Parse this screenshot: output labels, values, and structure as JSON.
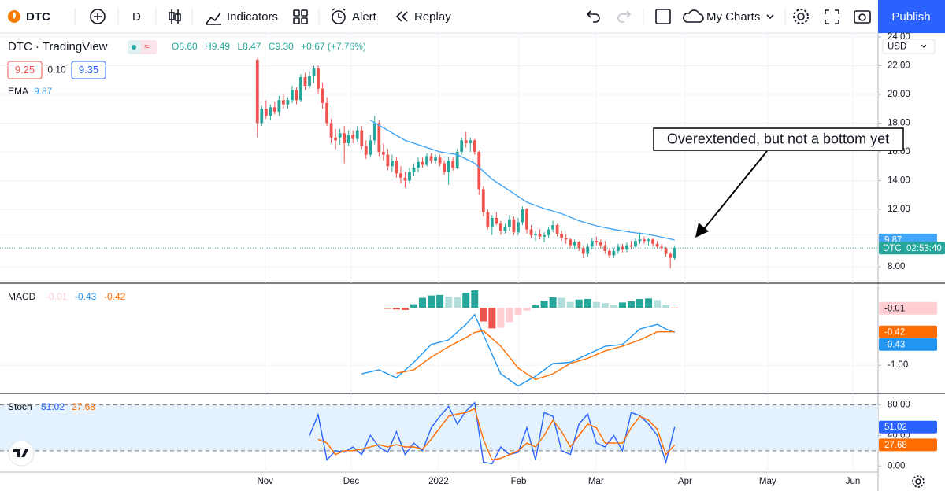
{
  "toolbar": {
    "symbol": "DTC",
    "interval": "D",
    "indicators": "Indicators",
    "alert": "Alert",
    "replay": "Replay",
    "layouts": "My Charts",
    "publish": "Publish"
  },
  "header": {
    "title": "DTC · TradingView",
    "open": "O8.60",
    "high": "H9.49",
    "low": "L8.47",
    "close": "C9.30",
    "change": "+0.67 (+7.76%)",
    "bid": "9.25",
    "spread": "0.10",
    "ask": "9.35"
  },
  "currency": "USD",
  "annotation": "Overextended, but not a bottom yet",
  "chart_data": [
    {
      "type": "candlestick",
      "symbol": "DTC",
      "countdown": "02:53:40",
      "up_color": "#26a69a",
      "down_color": "#ef5350",
      "grid": true,
      "xlim": [
        -59.2,
        142.8
      ],
      "xticks": [
        {
          "value": 1.8,
          "label": "Nov"
        },
        {
          "value": 21.6,
          "label": "Dec"
        },
        {
          "value": 41.7,
          "label": "2022"
        },
        {
          "value": 60.1,
          "label": "Feb"
        },
        {
          "value": 77.9,
          "label": "Mar"
        },
        {
          "value": 98.4,
          "label": "Apr"
        },
        {
          "value": 117.4,
          "label": "May"
        },
        {
          "value": 137,
          "label": "Jun"
        }
      ],
      "ylim": [
        6.85,
        24.27
      ],
      "yticks": [
        {
          "value": 24,
          "label": "24.00"
        },
        {
          "value": 22,
          "label": "22.00"
        },
        {
          "value": 20,
          "label": "20.00"
        },
        {
          "value": 18,
          "label": "18.00"
        },
        {
          "value": 16,
          "label": "16.00"
        },
        {
          "value": 14,
          "label": "14.00"
        },
        {
          "value": 12,
          "label": "12.00"
        },
        {
          "value": 10,
          "label": "10.00"
        },
        {
          "value": 8,
          "label": "8.00"
        }
      ],
      "ohlc": [
        [
          22.4,
          22.5,
          17.0,
          18.0
        ],
        [
          18.0,
          19.2,
          17.8,
          19.0
        ],
        [
          19.0,
          19.6,
          18.3,
          18.5
        ],
        [
          18.5,
          19.3,
          18.2,
          19.1
        ],
        [
          19.1,
          19.5,
          18.6,
          18.8
        ],
        [
          18.8,
          19.9,
          18.5,
          19.6
        ],
        [
          19.6,
          20.0,
          19.0,
          19.3
        ],
        [
          19.3,
          19.8,
          19.0,
          19.6
        ],
        [
          19.6,
          20.6,
          19.4,
          20.3
        ],
        [
          20.3,
          20.5,
          19.3,
          19.6
        ],
        [
          19.6,
          21.4,
          19.5,
          21.2
        ],
        [
          21.2,
          21.5,
          20.3,
          20.6
        ],
        [
          20.6,
          21.6,
          20.4,
          21.3
        ],
        [
          21.3,
          22.0,
          20.8,
          21.8
        ],
        [
          21.8,
          22.0,
          20.0,
          20.4
        ],
        [
          20.4,
          20.8,
          19.0,
          19.4
        ],
        [
          19.4,
          19.8,
          17.8,
          18.0
        ],
        [
          18.0,
          18.3,
          16.6,
          17.0
        ],
        [
          17.0,
          17.6,
          16.2,
          16.8
        ],
        [
          17.0,
          17.6,
          16.5,
          17.3
        ],
        [
          17.3,
          17.8,
          15.2,
          16.6
        ],
        [
          16.6,
          17.5,
          16.4,
          17.2
        ],
        [
          17.2,
          17.5,
          16.6,
          16.9
        ],
        [
          16.9,
          17.8,
          16.7,
          17.5
        ],
        [
          17.5,
          17.8,
          16.2,
          16.4
        ],
        [
          16.4,
          16.8,
          15.5,
          15.8
        ],
        [
          15.8,
          17.2,
          15.6,
          16.8
        ],
        [
          16.8,
          18.5,
          16.5,
          18.0
        ],
        [
          18.0,
          18.2,
          15.7,
          16.0
        ],
        [
          16.0,
          16.6,
          15.4,
          15.8
        ],
        [
          15.8,
          16.2,
          14.7,
          15.0
        ],
        [
          15.0,
          15.8,
          14.6,
          15.4
        ],
        [
          15.4,
          15.6,
          14.2,
          14.5
        ],
        [
          14.5,
          15.0,
          13.8,
          14.2
        ],
        [
          14.2,
          14.6,
          13.5,
          14.0
        ],
        [
          14.0,
          14.9,
          13.8,
          14.6
        ],
        [
          14.6,
          15.2,
          14.3,
          14.9
        ],
        [
          14.9,
          15.6,
          14.6,
          15.3
        ],
        [
          15.3,
          15.6,
          14.9,
          15.1
        ],
        [
          15.1,
          15.9,
          15.0,
          15.7
        ],
        [
          15.7,
          15.9,
          15.2,
          15.4
        ],
        [
          15.4,
          15.8,
          15.2,
          15.6
        ],
        [
          15.6,
          15.8,
          15.0,
          15.2
        ],
        [
          15.2,
          15.4,
          14.4,
          14.6
        ],
        [
          14.6,
          15.6,
          13.7,
          15.4
        ],
        [
          15.4,
          15.6,
          14.7,
          14.9
        ],
        [
          14.9,
          16.2,
          14.8,
          16.0
        ],
        [
          16.0,
          17.0,
          15.8,
          16.8
        ],
        [
          16.8,
          17.4,
          16.3,
          16.6
        ],
        [
          16.6,
          17.0,
          16.0,
          16.8
        ],
        [
          16.8,
          16.9,
          15.8,
          16.0
        ],
        [
          16.0,
          16.1,
          13.0,
          13.4
        ],
        [
          13.4,
          13.6,
          11.5,
          11.8
        ],
        [
          11.8,
          12.0,
          10.6,
          10.8
        ],
        [
          10.8,
          11.6,
          10.2,
          11.4
        ],
        [
          11.4,
          11.8,
          10.9,
          11.0
        ],
        [
          11.0,
          11.2,
          10.2,
          10.5
        ],
        [
          10.5,
          11.0,
          10.3,
          10.8
        ],
        [
          10.8,
          11.6,
          10.5,
          11.3
        ],
        [
          11.3,
          11.5,
          10.2,
          10.4
        ],
        [
          10.4,
          11.4,
          10.2,
          11.1
        ],
        [
          11.1,
          12.2,
          10.9,
          12.0
        ],
        [
          12.0,
          12.1,
          10.3,
          10.6
        ],
        [
          10.6,
          10.9,
          10.0,
          10.2
        ],
        [
          10.2,
          10.5,
          9.8,
          10.3
        ],
        [
          10.3,
          10.6,
          9.9,
          10.1
        ],
        [
          10.1,
          10.4,
          9.7,
          10.2
        ],
        [
          10.2,
          10.8,
          10.0,
          10.6
        ],
        [
          10.6,
          11.2,
          10.4,
          10.9
        ],
        [
          10.9,
          11.0,
          10.1,
          10.3
        ],
        [
          10.3,
          10.5,
          9.8,
          10.0
        ],
        [
          10.0,
          10.3,
          9.6,
          9.9
        ],
        [
          9.9,
          10.0,
          9.3,
          9.5
        ],
        [
          9.5,
          9.9,
          9.2,
          9.7
        ],
        [
          9.7,
          9.8,
          9.1,
          9.3
        ],
        [
          9.3,
          9.5,
          8.6,
          8.9
        ],
        [
          8.9,
          9.6,
          8.7,
          9.4
        ],
        [
          9.4,
          10.0,
          9.2,
          9.8
        ],
        [
          9.8,
          10.1,
          9.5,
          9.7
        ],
        [
          9.7,
          9.9,
          9.3,
          9.5
        ],
        [
          9.5,
          9.8,
          8.9,
          9.1
        ],
        [
          9.1,
          9.3,
          8.6,
          8.8
        ],
        [
          8.8,
          9.3,
          8.6,
          9.1
        ],
        [
          9.1,
          9.6,
          8.9,
          9.4
        ],
        [
          9.4,
          9.6,
          9.0,
          9.2
        ],
        [
          9.2,
          9.7,
          9.0,
          9.5
        ],
        [
          9.5,
          9.8,
          9.2,
          9.4
        ],
        [
          9.4,
          10.0,
          9.3,
          9.8
        ],
        [
          9.8,
          10.4,
          9.6,
          9.9
        ],
        [
          9.9,
          10.1,
          9.6,
          9.8
        ],
        [
          9.8,
          10.0,
          9.5,
          9.9
        ],
        [
          9.9,
          10.0,
          9.4,
          9.6
        ],
        [
          9.6,
          9.8,
          9.3,
          9.4
        ],
        [
          9.4,
          9.6,
          9.1,
          9.3
        ],
        [
          9.3,
          9.4,
          8.7,
          8.9
        ],
        [
          8.9,
          9.0,
          7.9,
          8.63
        ],
        [
          8.6,
          9.49,
          8.47,
          9.3
        ]
      ],
      "series": [
        {
          "name": "EMA",
          "color": "#42a5f5",
          "x": [
            26,
            30,
            34,
            38,
            42,
            46,
            50,
            54,
            58,
            62,
            66,
            70,
            74,
            78,
            82,
            86,
            90,
            94,
            96
          ],
          "values": [
            18.2,
            17.5,
            16.8,
            16.4,
            16.0,
            15.8,
            15.2,
            14.1,
            13.3,
            12.5,
            12.05,
            11.7,
            11.2,
            10.85,
            10.6,
            10.4,
            10.25,
            10.0,
            9.87
          ]
        }
      ]
    },
    {
      "type": "macd",
      "title": "MACD",
      "ylim": [
        -1.49,
        0.41
      ],
      "yticks": [
        {
          "value": -1,
          "label": "-1.00"
        }
      ],
      "histogram": {
        "colors": [
          "#26a69a",
          "#b2dfdb",
          "#ffcdd2",
          "#ef5350"
        ],
        "x": [
          30,
          32,
          34,
          36,
          38,
          40,
          42,
          44,
          46,
          48,
          50,
          52,
          54,
          56,
          58,
          60,
          62,
          64,
          66,
          68,
          70,
          72,
          74,
          76,
          78,
          80,
          82,
          84,
          86,
          88,
          90,
          92,
          94,
          96
        ],
        "values": [
          -0.02,
          -0.03,
          -0.04,
          0.06,
          0.17,
          0.21,
          0.22,
          0.19,
          0.18,
          0.26,
          0.3,
          -0.24,
          -0.36,
          -0.35,
          -0.25,
          -0.12,
          -0.05,
          0.04,
          0.12,
          0.18,
          0.17,
          0.1,
          0.14,
          0.15,
          0.1,
          0.08,
          0.05,
          0.09,
          0.11,
          0.15,
          0.16,
          0.13,
          0.05,
          -0.01
        ]
      },
      "series": [
        {
          "color": "#2196f3",
          "x": [
            24,
            28,
            32,
            36,
            40,
            44,
            48,
            50,
            52,
            56,
            60,
            64,
            68,
            72,
            76,
            80,
            84,
            88,
            92,
            94,
            96
          ],
          "values": [
            -1.15,
            -1.08,
            -1.22,
            -0.95,
            -0.64,
            -0.56,
            -0.29,
            -0.12,
            -0.47,
            -1.15,
            -1.36,
            -1.19,
            -0.97,
            -0.95,
            -0.81,
            -0.67,
            -0.64,
            -0.37,
            -0.29,
            -0.37,
            -0.43
          ]
        },
        {
          "color": "#ff6d00",
          "x": [
            32,
            36,
            40,
            44,
            48,
            50,
            52,
            56,
            60,
            64,
            68,
            72,
            76,
            80,
            84,
            88,
            92,
            96
          ],
          "values": [
            -1.14,
            -1.08,
            -0.86,
            -0.68,
            -0.52,
            -0.43,
            -0.4,
            -0.67,
            -1.05,
            -1.25,
            -1.15,
            -0.97,
            -0.88,
            -0.75,
            -0.67,
            -0.56,
            -0.42,
            -0.42
          ]
        }
      ]
    },
    {
      "type": "stochastic",
      "title": "Stoch",
      "ylim": [
        -8,
        94
      ],
      "band_color": "#e3f2fd",
      "levels": [
        80,
        20
      ],
      "yticks": [
        {
          "value": 80,
          "label": "80.00"
        },
        {
          "value": 40,
          "label": "40.00"
        },
        {
          "value": 0,
          "label": "0.00"
        }
      ],
      "series": [
        {
          "color": "#2962ff",
          "x": [
            12,
            14,
            16,
            18,
            20,
            22,
            24,
            26,
            28,
            30,
            32,
            34,
            36,
            38,
            40,
            42,
            44,
            46,
            48,
            50,
            52,
            54,
            56,
            58,
            60,
            62,
            64,
            66,
            68,
            70,
            72,
            74,
            76,
            78,
            80,
            82,
            84,
            86,
            88,
            90,
            92,
            94,
            96
          ],
          "values": [
            40,
            67,
            8,
            20,
            18,
            25,
            15,
            40,
            25,
            18,
            45,
            15,
            30,
            20,
            50,
            65,
            78,
            55,
            72,
            83,
            5,
            3,
            25,
            15,
            18,
            50,
            8,
            70,
            65,
            20,
            15,
            55,
            68,
            30,
            25,
            40,
            20,
            70,
            66,
            55,
            40,
            5,
            51.02
          ]
        },
        {
          "color": "#ff6d00",
          "x": [
            14,
            16,
            18,
            20,
            22,
            24,
            26,
            28,
            30,
            32,
            34,
            36,
            38,
            40,
            42,
            44,
            46,
            48,
            50,
            52,
            54,
            56,
            58,
            60,
            62,
            64,
            66,
            68,
            70,
            72,
            74,
            76,
            78,
            80,
            82,
            84,
            86,
            88,
            90,
            92,
            94,
            96
          ],
          "values": [
            35,
            30,
            15,
            20,
            20,
            22,
            25,
            28,
            25,
            28,
            25,
            25,
            22,
            35,
            50,
            65,
            68,
            70,
            75,
            35,
            8,
            10,
            15,
            20,
            30,
            25,
            40,
            60,
            45,
            25,
            40,
            55,
            50,
            30,
            30,
            30,
            50,
            65,
            60,
            48,
            15,
            27.68
          ]
        }
      ]
    }
  ]
}
